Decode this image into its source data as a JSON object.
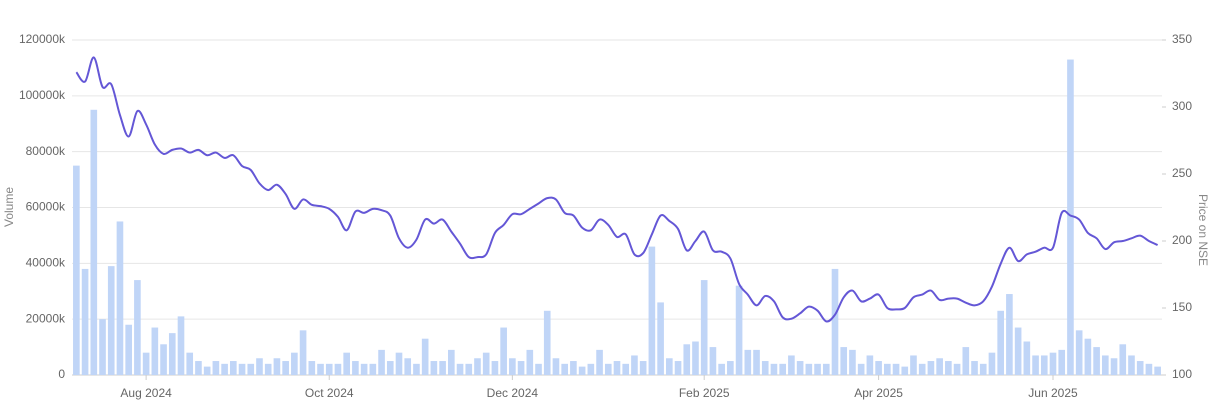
{
  "chart_data": {
    "type": "combo",
    "ylabel": "Volume",
    "y2label": "Price on NSE",
    "categories": [
      null,
      null,
      null,
      null,
      null,
      null,
      null,
      null,
      "Aug 2024",
      null,
      null,
      null,
      null,
      null,
      null,
      null,
      null,
      null,
      null,
      null,
      null,
      null,
      null,
      null,
      null,
      null,
      null,
      null,
      null,
      "Oct 2024",
      null,
      null,
      null,
      null,
      null,
      null,
      null,
      null,
      null,
      null,
      null,
      null,
      null,
      null,
      null,
      null,
      null,
      null,
      null,
      null,
      "Dec 2024",
      null,
      null,
      null,
      null,
      null,
      null,
      null,
      null,
      null,
      null,
      null,
      null,
      null,
      null,
      null,
      null,
      null,
      null,
      null,
      null,
      null,
      "Feb 2025",
      null,
      null,
      null,
      null,
      null,
      null,
      null,
      null,
      null,
      null,
      null,
      null,
      null,
      null,
      null,
      null,
      null,
      null,
      null,
      "Apr 2025",
      null,
      null,
      null,
      null,
      null,
      null,
      null,
      null,
      null,
      null,
      null,
      null,
      null,
      null,
      null,
      null,
      null,
      null,
      null,
      "Jun 2025",
      null,
      null,
      null,
      null,
      null,
      null,
      null,
      null,
      null,
      null,
      null,
      null
    ],
    "ylim": [
      0,
      120000
    ],
    "yticks": [
      0,
      {
        "value": 20000,
        "label": "20000k"
      },
      {
        "value": 40000,
        "label": "40000k"
      },
      {
        "value": 60000,
        "label": "60000k"
      },
      {
        "value": 80000,
        "label": "80000k"
      },
      {
        "value": 100000,
        "label": "100000k"
      },
      {
        "value": 120000,
        "label": "120000k"
      }
    ],
    "y2lim": [
      100,
      350
    ],
    "y2ticks": [
      100,
      150,
      200,
      250,
      300,
      350
    ],
    "grid": true,
    "series": [
      {
        "type": "bar",
        "color": "#c0d5f7",
        "values": [
          75000,
          38000,
          95000,
          20000,
          39000,
          55000,
          18000,
          34000,
          8000,
          17000,
          11000,
          15000,
          21000,
          8000,
          5000,
          3000,
          5000,
          4000,
          5000,
          4000,
          4000,
          6000,
          4000,
          6000,
          5000,
          8000,
          16000,
          5000,
          4000,
          4000,
          4000,
          8000,
          5000,
          4000,
          4000,
          9000,
          5000,
          8000,
          6000,
          4000,
          13000,
          5000,
          5000,
          9000,
          4000,
          4000,
          6000,
          8000,
          5000,
          17000,
          6000,
          5000,
          9000,
          4000,
          23000,
          6000,
          4000,
          5000,
          3000,
          4000,
          9000,
          4000,
          5000,
          4000,
          7000,
          5000,
          46000,
          26000,
          6000,
          5000,
          11000,
          12000,
          34000,
          10000,
          4000,
          5000,
          32000,
          9000,
          9000,
          5000,
          4000,
          4000,
          7000,
          5000,
          4000,
          4000,
          4000,
          38000,
          10000,
          9000,
          4000,
          7000,
          5000,
          4000,
          4000,
          3000,
          7000,
          4000,
          5000,
          6000,
          5000,
          4000,
          10000,
          5000,
          4000,
          8000,
          23000,
          29000,
          17000,
          12000,
          7000,
          7000,
          8000,
          9000,
          113000,
          16000,
          13000,
          10000,
          7000,
          6000,
          11000,
          7000,
          5000,
          4000,
          3000
        ]
      },
      {
        "type": "line",
        "axis": "y2",
        "color": "#6457d6",
        "values": [
          326,
          319,
          337,
          315,
          317,
          294,
          278,
          297,
          287,
          272,
          265,
          268,
          269,
          266,
          268,
          264,
          266,
          262,
          264,
          256,
          253,
          243,
          238,
          242,
          235,
          224,
          231,
          227,
          226,
          224,
          218,
          208,
          222,
          221,
          224,
          223,
          219,
          202,
          195,
          201,
          216,
          213,
          216,
          207,
          198,
          188,
          188,
          190,
          206,
          212,
          220,
          220,
          224,
          228,
          232,
          231,
          221,
          219,
          210,
          208,
          216,
          212,
          203,
          205,
          190,
          191,
          205,
          219,
          215,
          209,
          193,
          200,
          207,
          193,
          192,
          187,
          168,
          160,
          152,
          159,
          155,
          143,
          142,
          146,
          151,
          148,
          140,
          145,
          158,
          163,
          155,
          157,
          160,
          150,
          149,
          150,
          158,
          160,
          163,
          156,
          157,
          157,
          154,
          152,
          155,
          166,
          183,
          195,
          185,
          190,
          192,
          195,
          195,
          221,
          219,
          216,
          206,
          202,
          194,
          199,
          200,
          202,
          204,
          200,
          197
        ]
      }
    ]
  }
}
